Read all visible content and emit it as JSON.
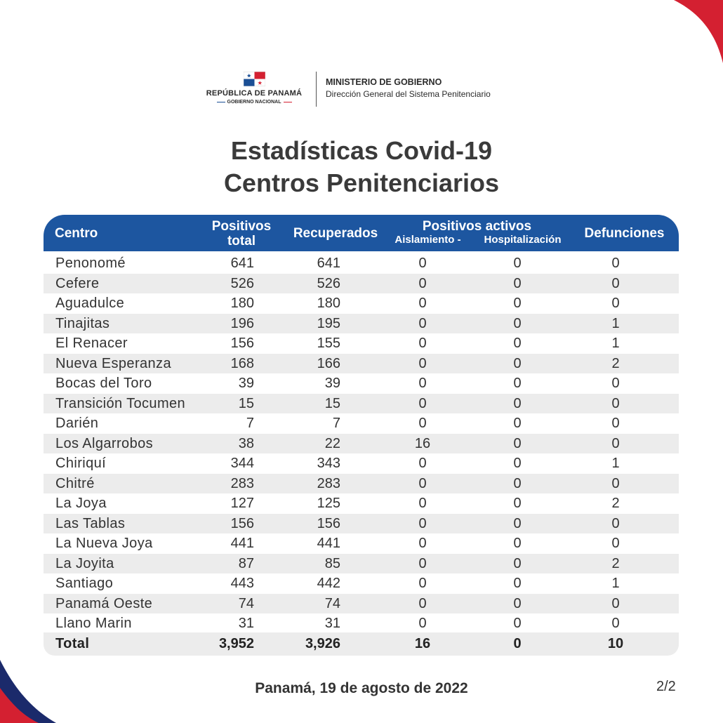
{
  "header": {
    "republic": "REPÚBLICA DE PANAMÁ",
    "gobierno": "GOBIERNO NACIONAL",
    "ministry": "MINISTERIO DE GOBIERNO",
    "direction": "Dirección General del Sistema Penitenciario"
  },
  "title": {
    "line1": "Estadísticas Covid-19",
    "line2": "Centros Penitenciarios"
  },
  "table": {
    "headers": {
      "centro": "Centro",
      "positivos_total_1": "Positivos",
      "positivos_total_2": "total",
      "recuperados": "Recuperados",
      "positivos_activos": "Positivos activos",
      "aislamiento": "Aislamiento -",
      "hospitalizacion": "Hospitalización",
      "defunciones": "Defunciones"
    },
    "rows": [
      {
        "centro": "Penonomé",
        "positivos": "641",
        "recuperados": "641",
        "aislamiento": "0",
        "hospitalizacion": "0",
        "defunciones": "0"
      },
      {
        "centro": "Cefere",
        "positivos": "526",
        "recuperados": "526",
        "aislamiento": "0",
        "hospitalizacion": "0",
        "defunciones": "0"
      },
      {
        "centro": "Aguadulce",
        "positivos": "180",
        "recuperados": "180",
        "aislamiento": "0",
        "hospitalizacion": "0",
        "defunciones": "0"
      },
      {
        "centro": "Tinajitas",
        "positivos": "196",
        "recuperados": "195",
        "aislamiento": "0",
        "hospitalizacion": "0",
        "defunciones": "1"
      },
      {
        "centro": "El Renacer",
        "positivos": "156",
        "recuperados": "155",
        "aislamiento": "0",
        "hospitalizacion": "0",
        "defunciones": "1"
      },
      {
        "centro": "Nueva Esperanza",
        "positivos": "168",
        "recuperados": "166",
        "aislamiento": "0",
        "hospitalizacion": "0",
        "defunciones": "2"
      },
      {
        "centro": "Bocas del Toro",
        "positivos": "39",
        "recuperados": "39",
        "aislamiento": "0",
        "hospitalizacion": "0",
        "defunciones": "0"
      },
      {
        "centro": "Transición Tocumen",
        "positivos": "15",
        "recuperados": "15",
        "aislamiento": "0",
        "hospitalizacion": "0",
        "defunciones": "0"
      },
      {
        "centro": "Darién",
        "positivos": "7",
        "recuperados": "7",
        "aislamiento": "0",
        "hospitalizacion": "0",
        "defunciones": "0"
      },
      {
        "centro": "Los Algarrobos",
        "positivos": "38",
        "recuperados": "22",
        "aislamiento": "16",
        "hospitalizacion": "0",
        "defunciones": "0"
      },
      {
        "centro": "Chiriquí",
        "positivos": "344",
        "recuperados": "343",
        "aislamiento": "0",
        "hospitalizacion": "0",
        "defunciones": "1"
      },
      {
        "centro": "Chitré",
        "positivos": "283",
        "recuperados": "283",
        "aislamiento": "0",
        "hospitalizacion": "0",
        "defunciones": "0"
      },
      {
        "centro": "La Joya",
        "positivos": "127",
        "recuperados": "125",
        "aislamiento": "0",
        "hospitalizacion": "0",
        "defunciones": "2"
      },
      {
        "centro": "Las Tablas",
        "positivos": "156",
        "recuperados": "156",
        "aislamiento": "0",
        "hospitalizacion": "0",
        "defunciones": "0"
      },
      {
        "centro": "La Nueva Joya",
        "positivos": "441",
        "recuperados": "441",
        "aislamiento": "0",
        "hospitalizacion": "0",
        "defunciones": "0"
      },
      {
        "centro": "La Joyita",
        "positivos": "87",
        "recuperados": "85",
        "aislamiento": "0",
        "hospitalizacion": "0",
        "defunciones": "2"
      },
      {
        "centro": "Santiago",
        "positivos": "443",
        "recuperados": "442",
        "aislamiento": "0",
        "hospitalizacion": "0",
        "defunciones": "1"
      },
      {
        "centro": "Panamá Oeste",
        "positivos": "74",
        "recuperados": "74",
        "aislamiento": "0",
        "hospitalizacion": "0",
        "defunciones": "0"
      },
      {
        "centro": "Llano Marin",
        "positivos": "31",
        "recuperados": "31",
        "aislamiento": "0",
        "hospitalizacion": "0",
        "defunciones": "0"
      }
    ],
    "total": {
      "label": "Total",
      "positivos": "3,952",
      "recuperados": "3,926",
      "aislamiento": "16",
      "hospitalizacion": "0",
      "defunciones": "10"
    }
  },
  "footer": {
    "date": "Panamá, 19 de agosto de 2022",
    "page": "2/2"
  },
  "colors": {
    "header_blue": "#1d56a0",
    "accent_red": "#d42031",
    "corner_navy": "#1b2a6b",
    "row_alt": "#ececec"
  }
}
